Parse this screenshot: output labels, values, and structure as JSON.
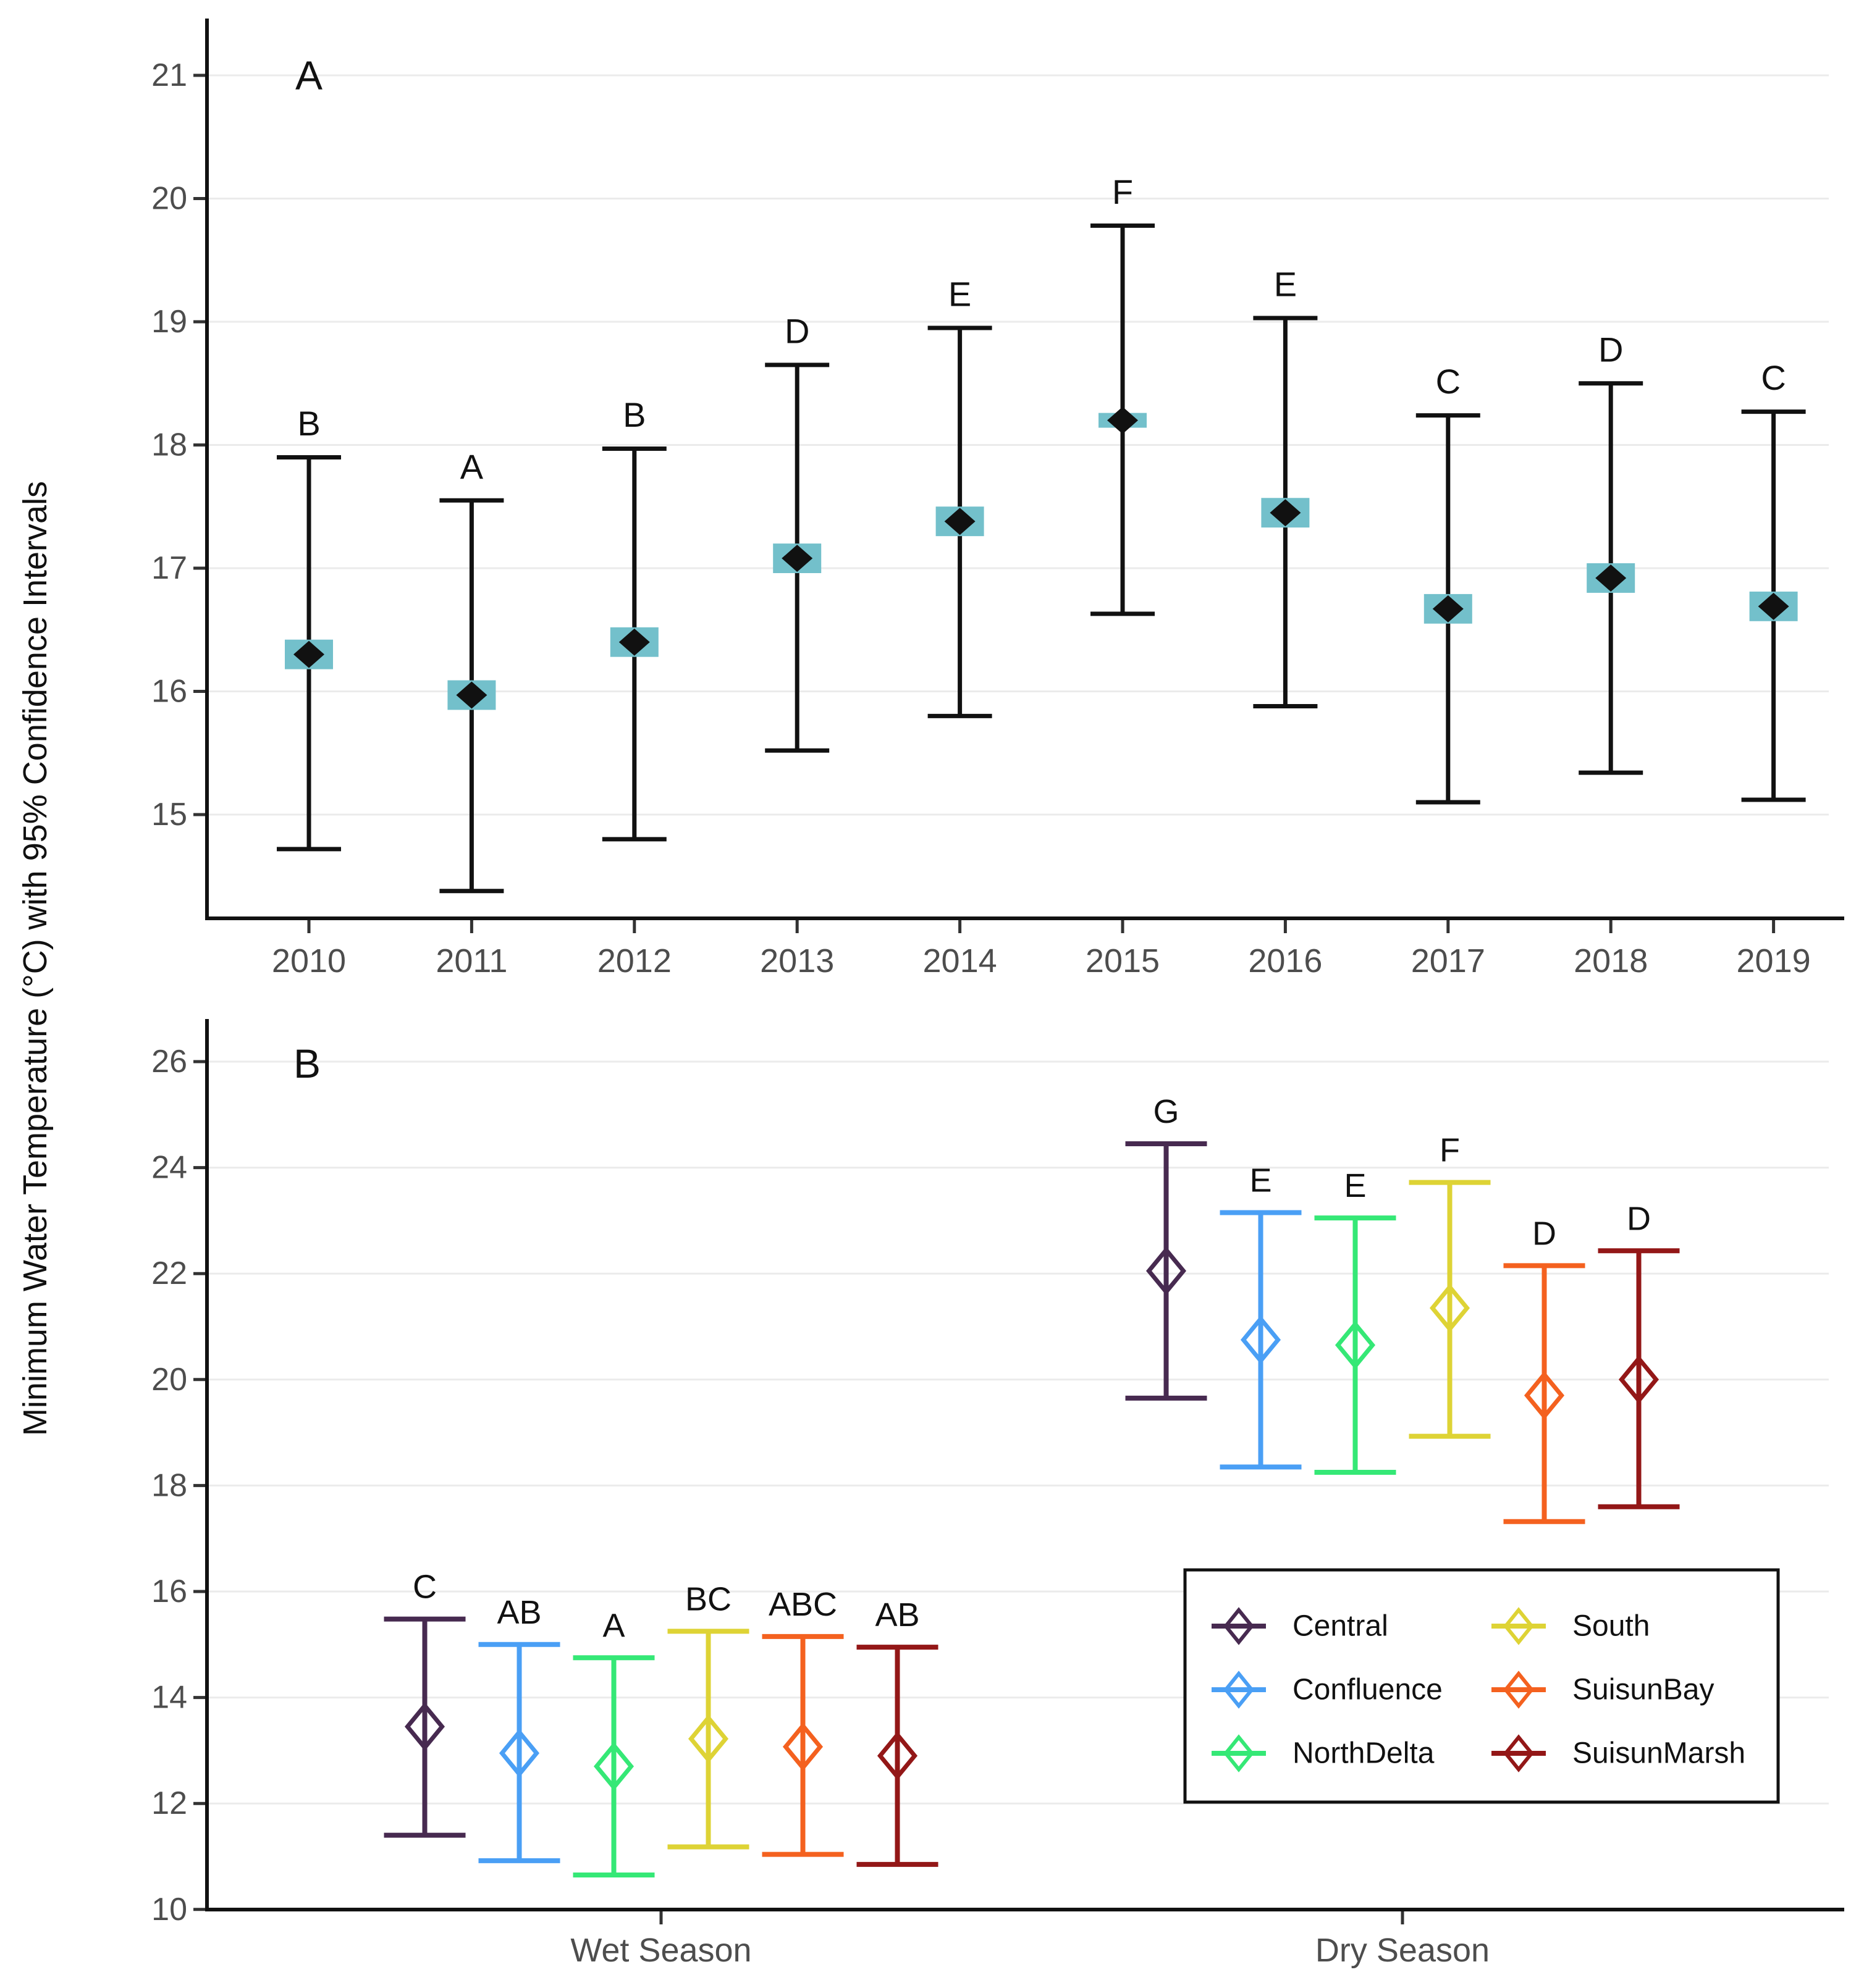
{
  "y_axis_label": "Minimum Water Temperature (°C) with 95% Confidence Intervals",
  "colors": {
    "axis": "#111111",
    "grid": "#ebebeb",
    "tick_text": "#4d4d4d",
    "letter": "#111111",
    "point_a": "#111111",
    "ci_box": "#73c0cb",
    "legend_border": "#111111",
    "legend_bg": "#ffffff"
  },
  "chart_data": [
    {
      "id": "panel_a",
      "type": "errorbar",
      "panel_label": "A",
      "ylabel": "Minimum Water Temperature (°C) with 95% Confidence Intervals",
      "x_tick_labels": [
        "2010",
        "2011",
        "2012",
        "2013",
        "2014",
        "2015",
        "2016",
        "2017",
        "2018",
        "2019"
      ],
      "y_tick_labels": [
        21,
        20,
        19,
        18,
        17,
        16,
        15
      ],
      "ylim": [
        14.1,
        21.45
      ],
      "grid": true,
      "legend_position": "none",
      "points": [
        {
          "x": "2010",
          "letter": "B",
          "mean": 16.3,
          "ci_low": 16.18,
          "ci_high": 16.42,
          "lower": 14.72,
          "upper": 17.9
        },
        {
          "x": "2011",
          "letter": "A",
          "mean": 15.97,
          "ci_low": 15.85,
          "ci_high": 16.09,
          "lower": 14.38,
          "upper": 17.55
        },
        {
          "x": "2012",
          "letter": "B",
          "mean": 16.4,
          "ci_low": 16.28,
          "ci_high": 16.52,
          "lower": 14.8,
          "upper": 17.97
        },
        {
          "x": "2013",
          "letter": "D",
          "mean": 17.08,
          "ci_low": 16.96,
          "ci_high": 17.2,
          "lower": 15.52,
          "upper": 18.65
        },
        {
          "x": "2014",
          "letter": "E",
          "mean": 17.38,
          "ci_low": 17.26,
          "ci_high": 17.5,
          "lower": 15.8,
          "upper": 18.95
        },
        {
          "x": "2015",
          "letter": "F",
          "mean": 18.2,
          "ci_low": 18.14,
          "ci_high": 18.26,
          "lower": 16.63,
          "upper": 19.78
        },
        {
          "x": "2016",
          "letter": "E",
          "mean": 17.45,
          "ci_low": 17.33,
          "ci_high": 17.57,
          "lower": 15.88,
          "upper": 19.03
        },
        {
          "x": "2017",
          "letter": "C",
          "mean": 16.67,
          "ci_low": 16.55,
          "ci_high": 16.79,
          "lower": 15.1,
          "upper": 18.24
        },
        {
          "x": "2018",
          "letter": "D",
          "mean": 16.92,
          "ci_low": 16.8,
          "ci_high": 17.04,
          "lower": 15.34,
          "upper": 18.5
        },
        {
          "x": "2019",
          "letter": "C",
          "mean": 16.69,
          "ci_low": 16.57,
          "ci_high": 16.81,
          "lower": 15.12,
          "upper": 18.27
        }
      ]
    },
    {
      "id": "panel_b",
      "type": "errorbar",
      "panel_label": "B",
      "x_tick_labels": [
        "Wet Season",
        "Dry Season"
      ],
      "y_tick_labels": [
        26,
        24,
        22,
        20,
        18,
        16,
        14,
        12,
        10
      ],
      "ylim": [
        10,
        26.8
      ],
      "grid": true,
      "legend_position": "inside-bottom-right",
      "groups": [
        {
          "name": "Central",
          "color": "#472a50"
        },
        {
          "name": "Confluence",
          "color": "#4a9ff5"
        },
        {
          "name": "NorthDelta",
          "color": "#35e876"
        },
        {
          "name": "South",
          "color": "#ded335"
        },
        {
          "name": "SuisunBay",
          "color": "#f4611f"
        },
        {
          "name": "SuisunMarsh",
          "color": "#931717"
        }
      ],
      "points": [
        {
          "season": "Wet Season",
          "group": "Central",
          "letter": "C",
          "mean": 13.45,
          "lower": 11.4,
          "upper": 15.48
        },
        {
          "season": "Wet Season",
          "group": "Confluence",
          "letter": "AB",
          "mean": 12.95,
          "lower": 10.92,
          "upper": 15.0
        },
        {
          "season": "Wet Season",
          "group": "NorthDelta",
          "letter": "A",
          "mean": 12.7,
          "lower": 10.65,
          "upper": 14.75
        },
        {
          "season": "Wet Season",
          "group": "South",
          "letter": "BC",
          "mean": 13.22,
          "lower": 11.18,
          "upper": 15.25
        },
        {
          "season": "Wet Season",
          "group": "SuisunBay",
          "letter": "ABC",
          "mean": 13.07,
          "lower": 11.04,
          "upper": 15.15
        },
        {
          "season": "Wet Season",
          "group": "SuisunMarsh",
          "letter": "AB",
          "mean": 12.9,
          "lower": 10.85,
          "upper": 14.95
        },
        {
          "season": "Dry Season",
          "group": "Central",
          "letter": "G",
          "mean": 22.05,
          "lower": 19.65,
          "upper": 24.45
        },
        {
          "season": "Dry Season",
          "group": "Confluence",
          "letter": "E",
          "mean": 20.75,
          "lower": 18.35,
          "upper": 23.15
        },
        {
          "season": "Dry Season",
          "group": "NorthDelta",
          "letter": "E",
          "mean": 20.65,
          "lower": 18.25,
          "upper": 23.05
        },
        {
          "season": "Dry Season",
          "group": "South",
          "letter": "F",
          "mean": 21.35,
          "lower": 18.93,
          "upper": 23.72
        },
        {
          "season": "Dry Season",
          "group": "SuisunBay",
          "letter": "D",
          "mean": 19.7,
          "lower": 17.32,
          "upper": 22.15
        },
        {
          "season": "Dry Season",
          "group": "SuisunMarsh",
          "letter": "D",
          "mean": 20.0,
          "lower": 17.6,
          "upper": 22.43
        }
      ],
      "legend": {
        "rows": [
          [
            "Central",
            "South"
          ],
          [
            "Confluence",
            "SuisunBay"
          ],
          [
            "NorthDelta",
            "SuisunMarsh"
          ]
        ]
      }
    }
  ]
}
